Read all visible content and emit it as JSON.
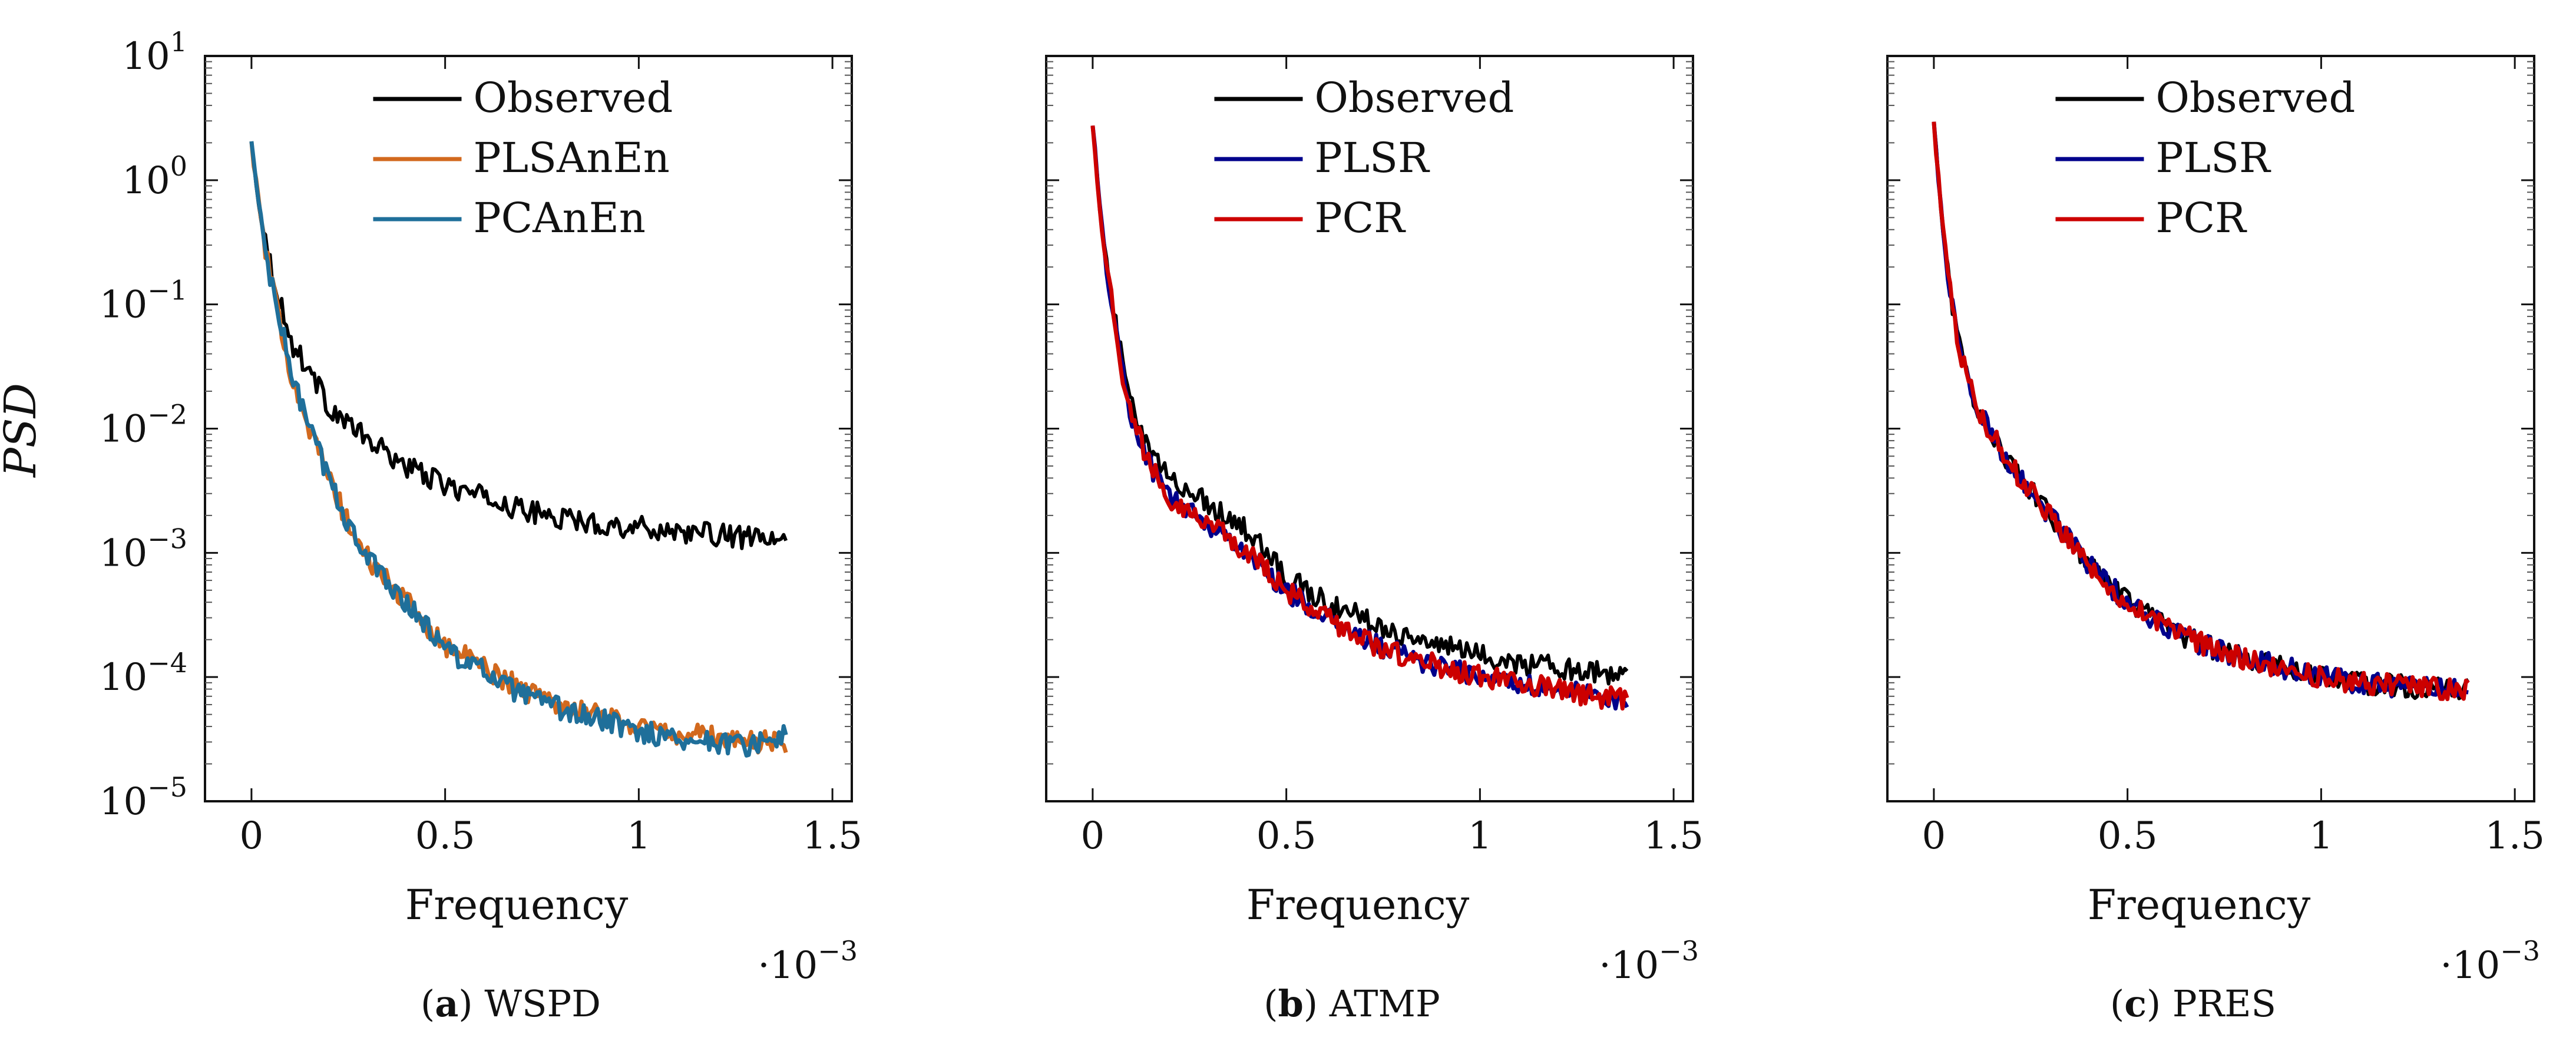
{
  "figure": {
    "ylabel": "PSD",
    "xlabel": "Frequency",
    "x_scale_note": "·10",
    "x_scale_exp": "−3"
  },
  "chart_data": [
    {
      "type": "line",
      "panel_letter": "a",
      "panel_name": "WSPD",
      "xlabel": "Frequency",
      "ylabel": "PSD",
      "y_scale": "log",
      "xlim": [
        -0.12,
        1.55
      ],
      "ylim": [
        1e-05,
        10
      ],
      "x_multiplier": "1e-3",
      "xticks": [
        "0",
        "0.5",
        "1",
        "1.5"
      ],
      "yticks": [
        "10",
        "10",
        "10",
        "10",
        "10",
        "10",
        "10"
      ],
      "ytick_exponents": [
        "1",
        "0",
        "−1",
        "−2",
        "−3",
        "−4",
        "−5"
      ],
      "legend_position": "top-center",
      "series": [
        {
          "name": "Observed",
          "color": "#000000",
          "x": [
            0.0,
            0.02,
            0.05,
            0.08,
            0.1,
            0.15,
            0.2,
            0.3,
            0.4,
            0.5,
            0.6,
            0.7,
            0.8,
            0.9,
            1.0,
            1.1,
            1.2,
            1.3,
            1.38
          ],
          "values": [
            2.0,
            0.6,
            0.2,
            0.09,
            0.05,
            0.03,
            0.015,
            0.008,
            0.005,
            0.0035,
            0.0028,
            0.0022,
            0.0019,
            0.0017,
            0.0016,
            0.0015,
            0.0014,
            0.0013,
            0.0012
          ]
        },
        {
          "name": "PLSAnEn",
          "color": "#D2691E",
          "x": [
            0.0,
            0.02,
            0.05,
            0.08,
            0.1,
            0.15,
            0.2,
            0.25,
            0.3,
            0.4,
            0.5,
            0.6,
            0.7,
            0.8,
            0.9,
            1.0,
            1.1,
            1.2,
            1.3,
            1.38
          ],
          "values": [
            2.0,
            0.6,
            0.15,
            0.06,
            0.03,
            0.01,
            0.004,
            0.0017,
            0.0009,
            0.0004,
            0.00018,
            0.00012,
            8e-05,
            6e-05,
            5e-05,
            4e-05,
            3.5e-05,
            3.3e-05,
            3e-05,
            3e-05
          ]
        },
        {
          "name": "PCAnEn",
          "color": "#1F6F9A",
          "x": [
            0.0,
            0.02,
            0.05,
            0.08,
            0.1,
            0.15,
            0.2,
            0.25,
            0.3,
            0.4,
            0.5,
            0.6,
            0.7,
            0.8,
            0.9,
            1.0,
            1.1,
            1.2,
            1.3,
            1.38
          ],
          "values": [
            2.0,
            0.6,
            0.15,
            0.06,
            0.03,
            0.01,
            0.004,
            0.0017,
            0.0009,
            0.0004,
            0.00017,
            0.00011,
            7e-05,
            5.5e-05,
            4.5e-05,
            3.7e-05,
            3.2e-05,
            3e-05,
            2.8e-05,
            3.5e-05
          ]
        }
      ]
    },
    {
      "type": "line",
      "panel_letter": "b",
      "panel_name": "ATMP",
      "xlabel": "Frequency",
      "y_scale": "log",
      "xlim": [
        -0.12,
        1.55
      ],
      "ylim": [
        1e-05,
        10
      ],
      "x_multiplier": "1e-3",
      "xticks": [
        "0",
        "0.5",
        "1",
        "1.5"
      ],
      "legend_position": "top-center",
      "series": [
        {
          "name": "Observed",
          "color": "#000000",
          "x": [
            0.0,
            0.02,
            0.05,
            0.08,
            0.1,
            0.15,
            0.2,
            0.3,
            0.4,
            0.5,
            0.6,
            0.7,
            0.8,
            0.9,
            1.0,
            1.1,
            1.2,
            1.3,
            1.38
          ],
          "values": [
            3.0,
            0.5,
            0.1,
            0.03,
            0.015,
            0.006,
            0.004,
            0.0025,
            0.0015,
            0.00065,
            0.0004,
            0.0003,
            0.00022,
            0.00018,
            0.00015,
            0.00013,
            0.00012,
            0.00011,
            0.0001
          ]
        },
        {
          "name": "PLSR",
          "color": "#00008B",
          "x": [
            0.0,
            0.02,
            0.05,
            0.08,
            0.1,
            0.15,
            0.2,
            0.3,
            0.4,
            0.5,
            0.6,
            0.7,
            0.8,
            0.9,
            1.0,
            1.1,
            1.2,
            1.3,
            1.38
          ],
          "values": [
            3.0,
            0.5,
            0.1,
            0.025,
            0.012,
            0.005,
            0.0028,
            0.0017,
            0.001,
            0.0005,
            0.0003,
            0.0002,
            0.00015,
            0.00012,
            0.0001,
            9e-05,
            8e-05,
            7e-05,
            6.5e-05
          ]
        },
        {
          "name": "PCR",
          "color": "#CC0000",
          "x": [
            0.0,
            0.02,
            0.05,
            0.08,
            0.1,
            0.15,
            0.2,
            0.3,
            0.4,
            0.5,
            0.6,
            0.7,
            0.8,
            0.9,
            1.0,
            1.1,
            1.2,
            1.3,
            1.38
          ],
          "values": [
            3.0,
            0.5,
            0.1,
            0.025,
            0.012,
            0.005,
            0.0028,
            0.0017,
            0.001,
            0.0005,
            0.0003,
            0.0002,
            0.00015,
            0.00012,
            0.0001,
            9e-05,
            8e-05,
            7e-05,
            6.5e-05
          ]
        }
      ]
    },
    {
      "type": "line",
      "panel_letter": "c",
      "panel_name": "PRES",
      "xlabel": "Frequency",
      "y_scale": "log",
      "xlim": [
        -0.12,
        1.55
      ],
      "ylim": [
        1e-05,
        10
      ],
      "x_multiplier": "1e-3",
      "xticks": [
        "0",
        "0.5",
        "1",
        "1.5"
      ],
      "legend_position": "top-center",
      "series": [
        {
          "name": "Observed",
          "color": "#000000",
          "x": [
            0.0,
            0.02,
            0.05,
            0.08,
            0.1,
            0.15,
            0.2,
            0.3,
            0.4,
            0.5,
            0.6,
            0.7,
            0.8,
            0.9,
            1.0,
            1.1,
            1.2,
            1.3,
            1.38
          ],
          "values": [
            3.0,
            0.5,
            0.08,
            0.03,
            0.018,
            0.009,
            0.005,
            0.002,
            0.0008,
            0.0004,
            0.00025,
            0.00018,
            0.00014,
            0.00012,
            0.0001,
            9e-05,
            8.5e-05,
            8e-05,
            8e-05
          ]
        },
        {
          "name": "PLSR",
          "color": "#00008B",
          "x": [
            0.0,
            0.02,
            0.05,
            0.08,
            0.1,
            0.15,
            0.2,
            0.3,
            0.4,
            0.5,
            0.6,
            0.7,
            0.8,
            0.9,
            1.0,
            1.1,
            1.2,
            1.3,
            1.38
          ],
          "values": [
            3.0,
            0.5,
            0.08,
            0.03,
            0.018,
            0.009,
            0.005,
            0.002,
            0.0008,
            0.0004,
            0.00025,
            0.00018,
            0.00014,
            0.00012,
            0.0001,
            9e-05,
            8.5e-05,
            8e-05,
            8e-05
          ]
        },
        {
          "name": "PCR",
          "color": "#CC0000",
          "x": [
            0.0,
            0.02,
            0.05,
            0.08,
            0.1,
            0.15,
            0.2,
            0.3,
            0.4,
            0.5,
            0.6,
            0.7,
            0.8,
            0.9,
            1.0,
            1.1,
            1.2,
            1.3,
            1.38
          ],
          "values": [
            3.0,
            0.5,
            0.08,
            0.03,
            0.018,
            0.009,
            0.005,
            0.002,
            0.0008,
            0.0004,
            0.00025,
            0.00018,
            0.00014,
            0.00012,
            0.0001,
            9e-05,
            8.5e-05,
            8e-05,
            8e-05
          ]
        }
      ]
    }
  ]
}
